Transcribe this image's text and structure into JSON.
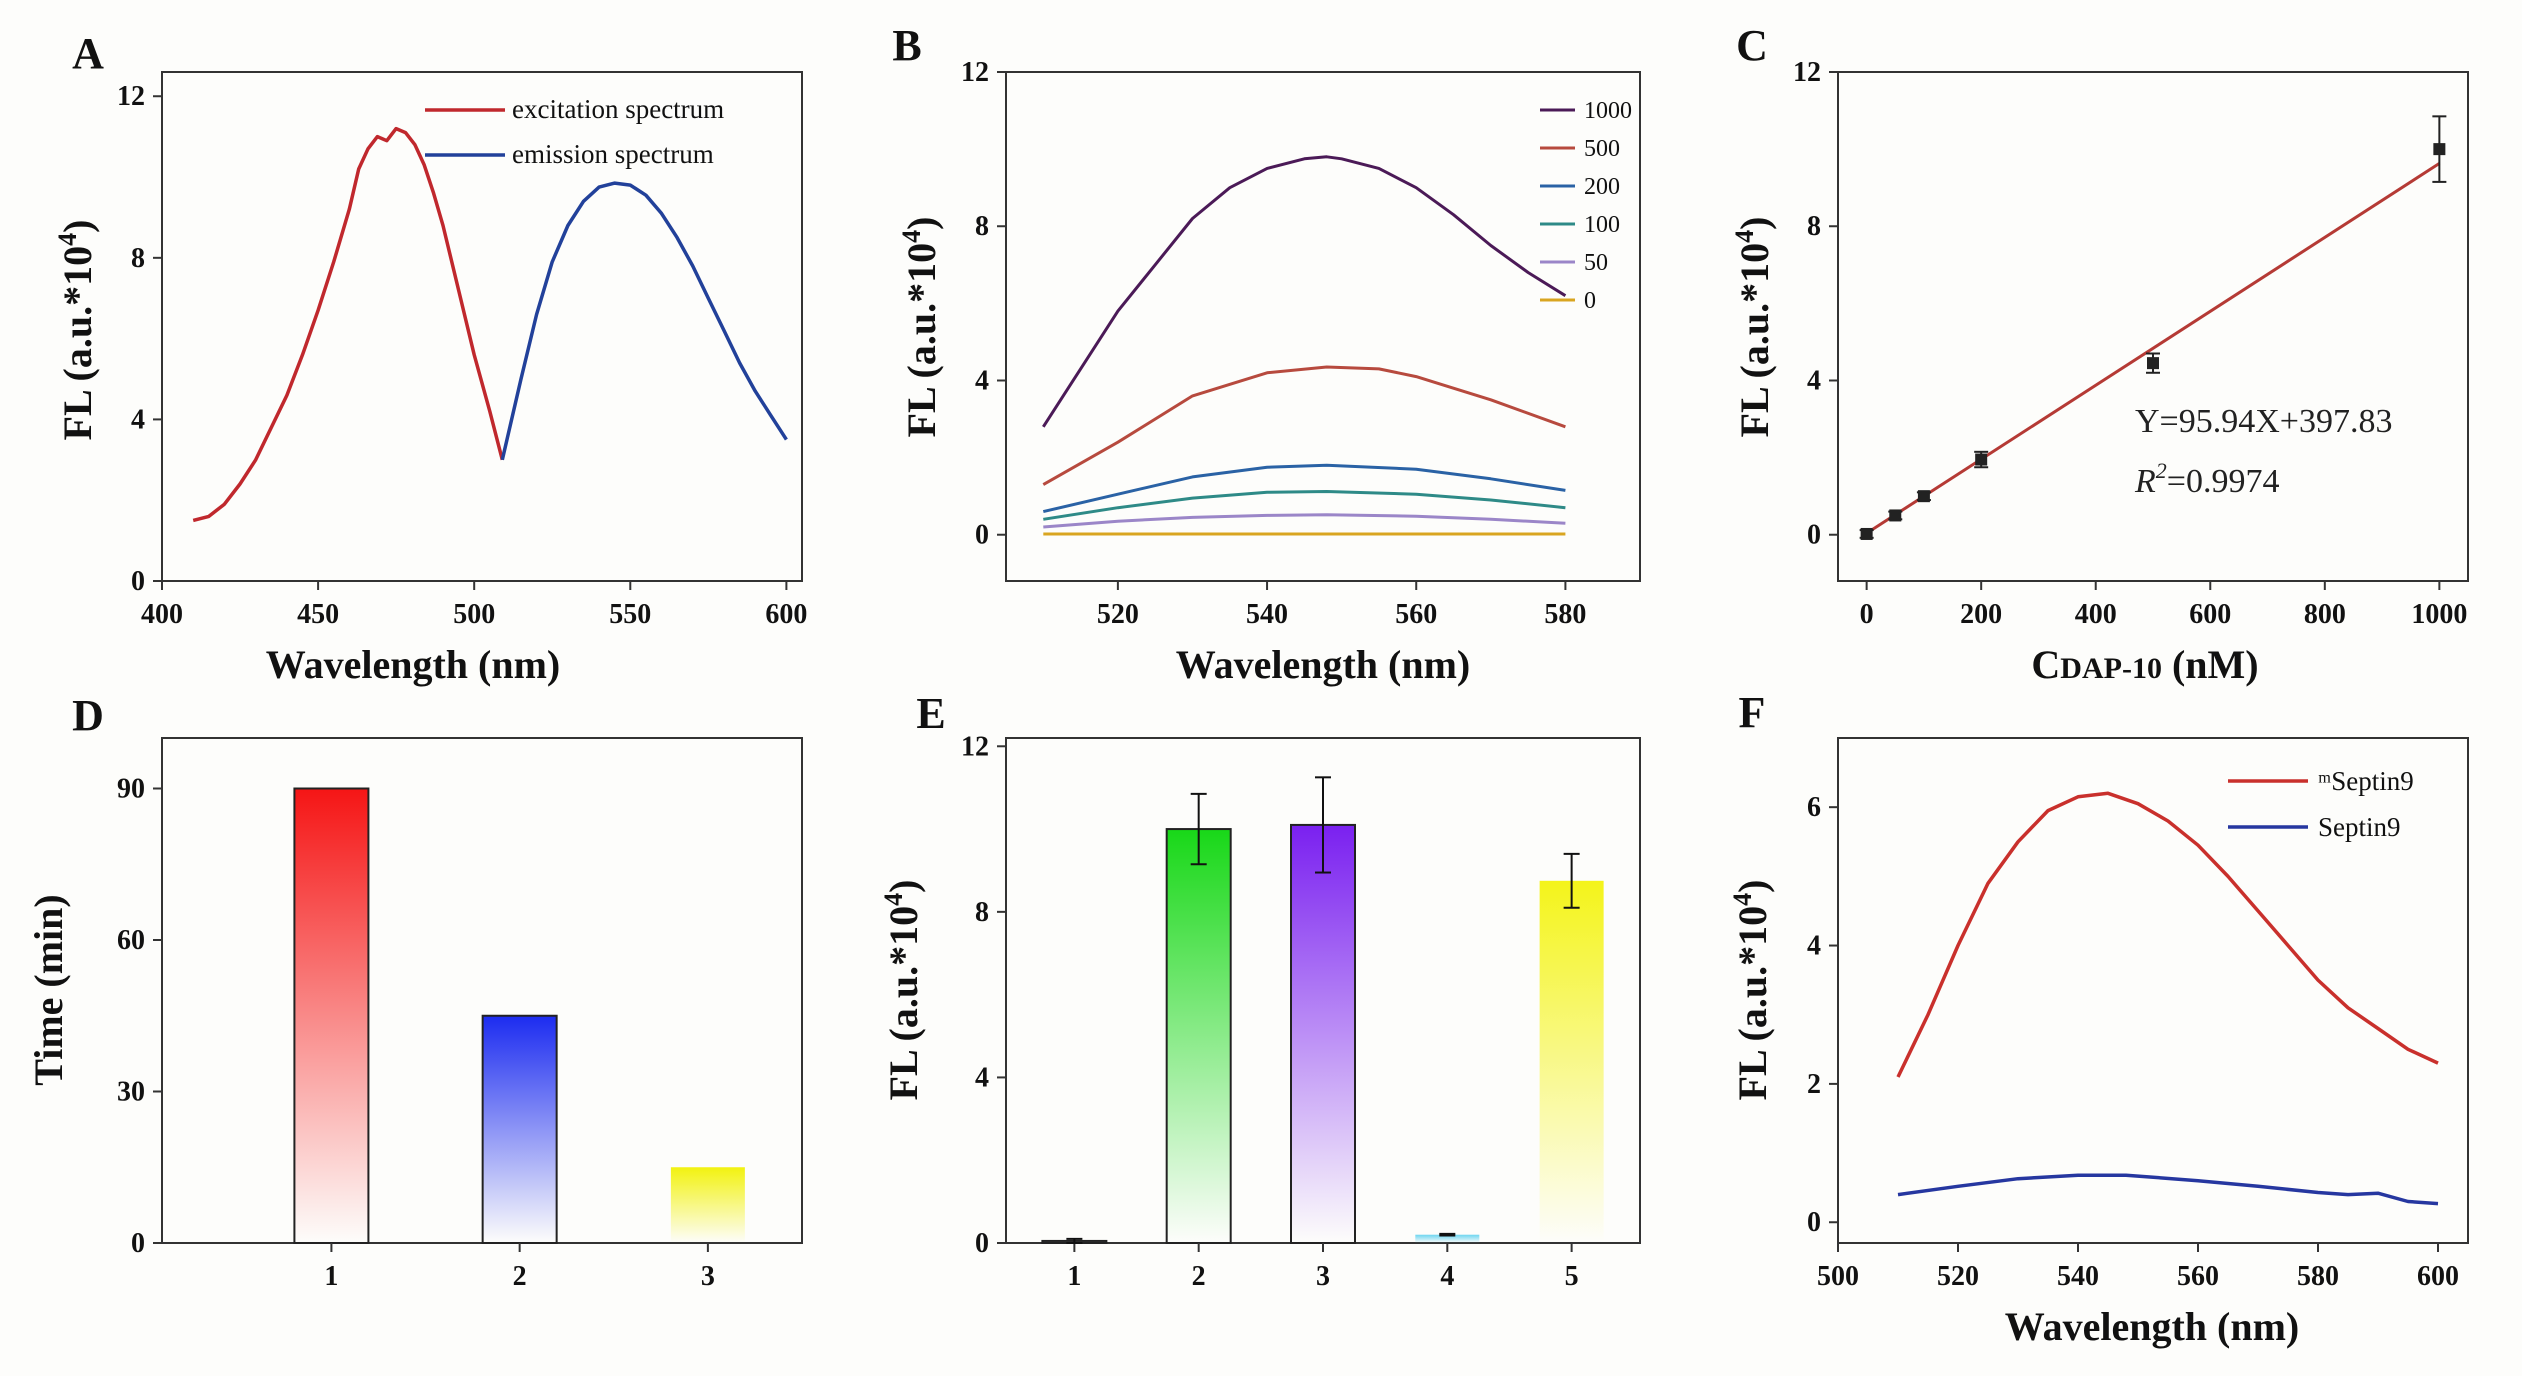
{
  "chart_data": [
    {
      "panel": "A",
      "type": "line",
      "xlabel": "Wavelength (nm)",
      "ylabel": "FL (a.u.*10",
      "ylabel_sup": "4",
      "ylabel_close": ")",
      "xlim": [
        400,
        605
      ],
      "ylim": [
        0,
        12.6
      ],
      "xticks": [
        400,
        450,
        500,
        550,
        600
      ],
      "yticks": [
        0,
        4,
        8,
        12
      ],
      "legend": "top-right",
      "series": [
        {
          "name": "excitation spectrum",
          "color": "#c0282d",
          "x": [
            410,
            415,
            420,
            425,
            430,
            435,
            440,
            445,
            450,
            455,
            460,
            463,
            466,
            469,
            472,
            475,
            478,
            481,
            484,
            487,
            490,
            495,
            500,
            505,
            509
          ],
          "y": [
            1.5,
            1.6,
            1.9,
            2.4,
            3.0,
            3.8,
            4.6,
            5.6,
            6.7,
            7.9,
            9.2,
            10.2,
            10.7,
            11.0,
            10.9,
            11.2,
            11.1,
            10.8,
            10.3,
            9.6,
            8.8,
            7.2,
            5.6,
            4.2,
            3.0
          ]
        },
        {
          "name": "emission spectrum",
          "color": "#22419a",
          "x": [
            509,
            515,
            520,
            525,
            530,
            535,
            540,
            545,
            550,
            555,
            560,
            565,
            570,
            575,
            580,
            585,
            590,
            595,
            600
          ],
          "y": [
            3.0,
            5.0,
            6.6,
            7.9,
            8.8,
            9.4,
            9.75,
            9.85,
            9.8,
            9.55,
            9.1,
            8.5,
            7.8,
            7.0,
            6.2,
            5.4,
            4.7,
            4.1,
            3.5
          ]
        }
      ]
    },
    {
      "panel": "B",
      "type": "line",
      "xlabel": "Wavelength (nm)",
      "ylabel": "FL  (a.u.*10",
      "ylabel_sup": "4",
      "ylabel_close": ")",
      "xlim": [
        505,
        590
      ],
      "ylim": [
        -1.2,
        12
      ],
      "xticks": [
        520,
        540,
        560,
        580
      ],
      "yticks": [
        0,
        4,
        8,
        12
      ],
      "legend": "top-right",
      "series": [
        {
          "name": "1000",
          "color": "#4b1a57",
          "x": [
            510,
            515,
            520,
            525,
            530,
            535,
            540,
            545,
            548,
            550,
            555,
            560,
            565,
            570,
            575,
            580
          ],
          "y": [
            2.8,
            4.3,
            5.8,
            7.0,
            8.2,
            9.0,
            9.5,
            9.75,
            9.8,
            9.75,
            9.5,
            9.0,
            8.3,
            7.5,
            6.8,
            6.2
          ]
        },
        {
          "name": "500",
          "color": "#b74a3e",
          "x": [
            510,
            520,
            530,
            540,
            548,
            555,
            560,
            570,
            580
          ],
          "y": [
            1.3,
            2.4,
            3.6,
            4.2,
            4.35,
            4.3,
            4.1,
            3.5,
            2.8
          ]
        },
        {
          "name": "200",
          "color": "#2a62a5",
          "x": [
            510,
            520,
            530,
            540,
            548,
            560,
            570,
            580
          ],
          "y": [
            0.6,
            1.05,
            1.5,
            1.75,
            1.8,
            1.7,
            1.45,
            1.15
          ]
        },
        {
          "name": "100",
          "color": "#2e8a87",
          "x": [
            510,
            520,
            530,
            540,
            548,
            560,
            570,
            580
          ],
          "y": [
            0.4,
            0.7,
            0.95,
            1.1,
            1.12,
            1.05,
            0.9,
            0.7
          ]
        },
        {
          "name": "50",
          "color": "#9b86c8",
          "x": [
            510,
            520,
            530,
            540,
            548,
            560,
            570,
            580
          ],
          "y": [
            0.2,
            0.35,
            0.45,
            0.5,
            0.52,
            0.48,
            0.4,
            0.3
          ]
        },
        {
          "name": "0",
          "color": "#d9a520",
          "x": [
            510,
            580
          ],
          "y": [
            0.02,
            0.02
          ]
        }
      ]
    },
    {
      "panel": "C",
      "type": "scatter",
      "xlabel_main": "C",
      "xlabel_sub": "DAP-10",
      "xlabel_unit": " (nM)",
      "ylabel": "FL  (a.u.*10",
      "ylabel_sup": "4",
      "ylabel_close": ")",
      "xlim": [
        -50,
        1050
      ],
      "ylim": [
        -1.2,
        12
      ],
      "xticks": [
        0,
        200,
        400,
        600,
        800,
        1000
      ],
      "yticks": [
        0,
        4,
        8,
        12
      ],
      "points": {
        "x": [
          0,
          50,
          100,
          200,
          500,
          1000
        ],
        "y": [
          0.02,
          0.5,
          1.0,
          1.95,
          4.45,
          10.0
        ],
        "err": [
          0.1,
          0.1,
          0.1,
          0.2,
          0.25,
          0.85
        ]
      },
      "fit": {
        "x": [
          0,
          1000
        ],
        "y": [
          0.04,
          9.63
        ],
        "color": "#b53a35"
      },
      "equation": "Y=95.94X+397.83",
      "r2_label": "R",
      "r2_sup": "2",
      "r2_value": "=0.9974"
    },
    {
      "panel": "D",
      "type": "bar",
      "ylabel": "Time (min)",
      "xlim": [
        0.1,
        3.5
      ],
      "ylim": [
        0,
        100
      ],
      "yticks": [
        0,
        30,
        60,
        90
      ],
      "categories": [
        "1",
        "2",
        "3"
      ],
      "values": [
        90,
        45,
        15
      ],
      "colors": [
        "#f51515",
        "#1c2cf0",
        "#f2f210"
      ],
      "outlined": [
        true,
        true,
        false
      ]
    },
    {
      "panel": "E",
      "type": "bar",
      "ylabel": "FL  (a.u.*10",
      "ylabel_sup": "4",
      "ylabel_close": ")",
      "xlim": [
        0.45,
        5.55
      ],
      "ylim": [
        0,
        12.2
      ],
      "yticks": [
        0,
        4,
        8,
        12
      ],
      "categories": [
        "1",
        "2",
        "3",
        "4",
        "5"
      ],
      "values": [
        0.05,
        10.0,
        10.1,
        0.2,
        8.75
      ],
      "errors": [
        0.05,
        0.85,
        1.15,
        0.02,
        0.65
      ],
      "colors": [
        "#222222",
        "#18d818",
        "#7a20f0",
        "#6dd5f0",
        "#f4f41a"
      ],
      "outlined": [
        true,
        true,
        true,
        false,
        false
      ]
    },
    {
      "panel": "F",
      "type": "line",
      "xlabel": "Wavelength (nm)",
      "ylabel": "FL  (a.u.*10",
      "ylabel_sup": "4",
      "ylabel_close": ")",
      "xlim": [
        500,
        605
      ],
      "ylim": [
        -0.3,
        7.0
      ],
      "xticks": [
        500,
        520,
        540,
        560,
        580,
        600
      ],
      "yticks": [
        0,
        2,
        4,
        6
      ],
      "legend": "top-right",
      "series": [
        {
          "name": "ᵐSeptin9",
          "color": "#c9302c",
          "x": [
            510,
            515,
            520,
            525,
            530,
            535,
            540,
            545,
            550,
            555,
            560,
            565,
            570,
            575,
            580,
            585,
            590,
            595,
            600
          ],
          "y": [
            2.1,
            3.0,
            4.0,
            4.9,
            5.5,
            5.95,
            6.15,
            6.2,
            6.05,
            5.8,
            5.45,
            5.0,
            4.5,
            4.0,
            3.5,
            3.1,
            2.8,
            2.5,
            2.3
          ]
        },
        {
          "name": "Septin9",
          "color": "#2637a0",
          "x": [
            510,
            520,
            530,
            540,
            548,
            560,
            570,
            580,
            585,
            590,
            595,
            600
          ],
          "y": [
            0.4,
            0.52,
            0.63,
            0.68,
            0.68,
            0.6,
            0.52,
            0.43,
            0.4,
            0.42,
            0.3,
            0.27
          ]
        }
      ]
    }
  ]
}
